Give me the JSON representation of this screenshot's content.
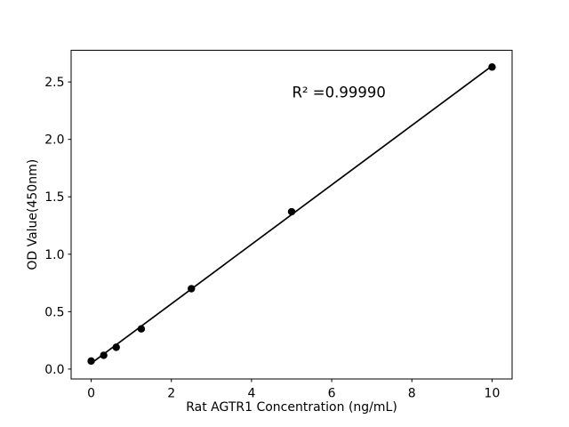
{
  "chart_data": {
    "type": "scatter",
    "title": "",
    "xlabel": "Rat AGTR1 Concentration (ng/mL)",
    "ylabel": "OD Value(450nm)",
    "annotation": {
      "text": "R² =0.99990",
      "x": 5.01,
      "y": 2.365
    },
    "points": {
      "x": [
        0,
        0.3125,
        0.625,
        1.25,
        2.5,
        5,
        10
      ],
      "y": [
        0.07,
        0.12,
        0.19,
        0.35,
        0.7,
        1.37,
        2.63
      ]
    },
    "trendline": {
      "x": [
        0,
        10
      ],
      "y": [
        0.05,
        2.64
      ]
    },
    "xlim": [
      -0.5,
      10.5
    ],
    "ylim": [
      -0.086,
      2.776
    ],
    "xticks": {
      "values": [
        0,
        2,
        4,
        6,
        8,
        10
      ],
      "labels": [
        "0",
        "2",
        "4",
        "6",
        "8",
        "10"
      ]
    },
    "yticks": {
      "values": [
        0,
        0.5,
        1.0,
        1.5,
        2.0,
        2.5
      ],
      "labels": [
        "0.0",
        "0.5",
        "1.0",
        "1.5",
        "2.0",
        "2.5"
      ]
    },
    "grid": false,
    "legend": null,
    "colors": {
      "marker": "#000000",
      "line": "#000000",
      "text": "#000000",
      "spine": "#000000",
      "background": "#ffffff"
    }
  }
}
